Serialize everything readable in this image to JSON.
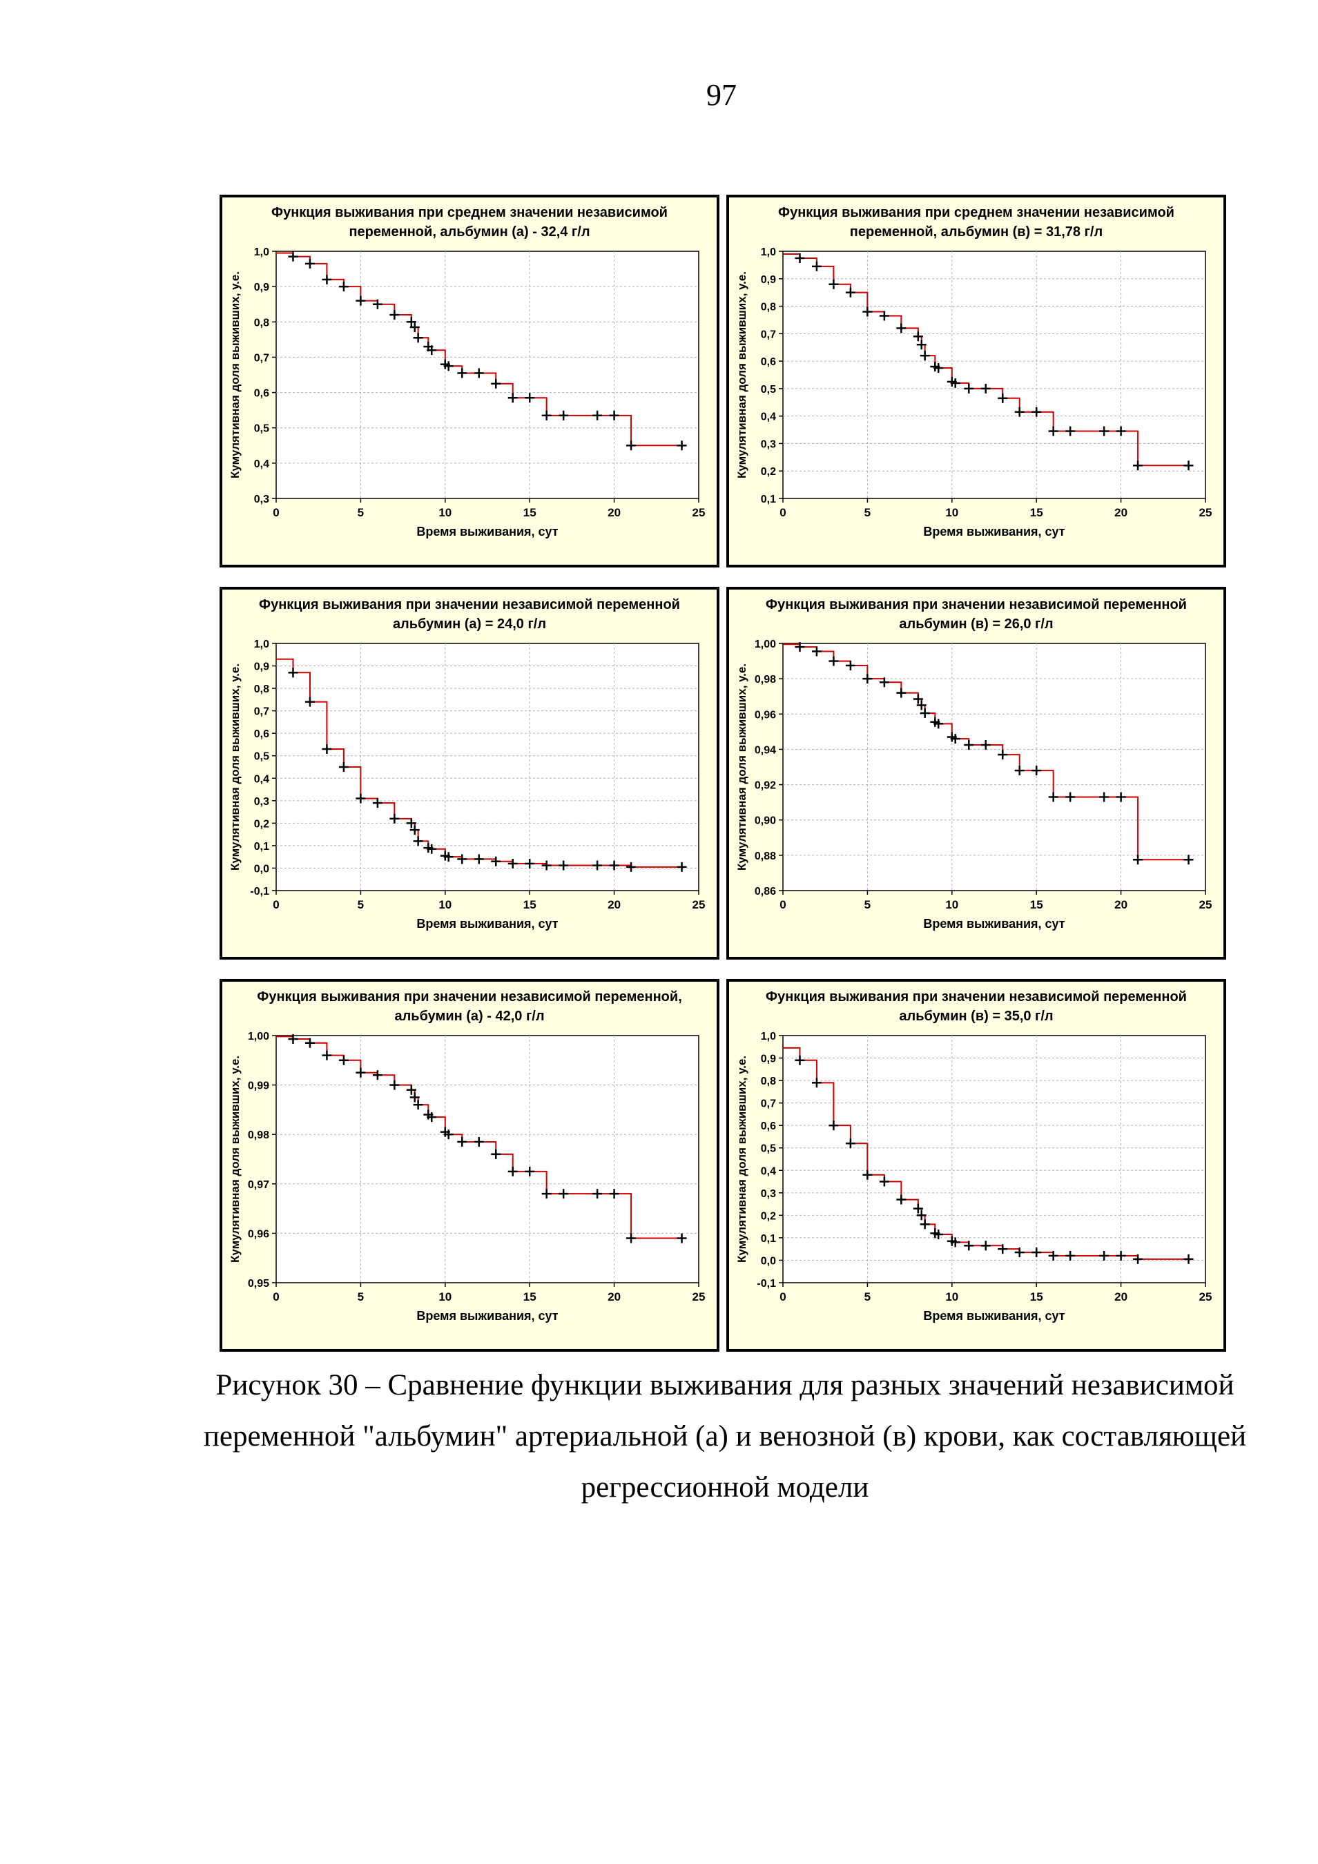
{
  "page_number": "97",
  "caption": "Рисунок 30 – Сравнение функции выживания для разных значений независимой переменной \"альбумин\" артериальной (а) и венозной (в) крови, как составляющей регрессионной модели",
  "colors": {
    "panel_bg": "#ffffe1",
    "curve": "#cc0000",
    "marker": "#000000"
  },
  "chart_data": [
    {
      "type": "line",
      "title_lines": [
        "Функция выживания при среднем значении независимой",
        "переменной, альбумин (а) - 32,4 г/л"
      ],
      "xlabel": "Время выживания, сут",
      "ylabel": "Кумулятивная доля выживших, у.е.",
      "xlim": [
        0,
        25
      ],
      "ylim": [
        0.3,
        1.0
      ],
      "xticks": [
        0,
        5,
        10,
        15,
        20,
        25
      ],
      "yticks": [
        0.3,
        0.4,
        0.5,
        0.6,
        0.7,
        0.8,
        0.9,
        1.0
      ],
      "ytick_labels": [
        "0,3",
        "0,4",
        "0,5",
        "0,6",
        "0,7",
        "0,8",
        "0,9",
        "1,0"
      ],
      "grid": true,
      "x": [
        0,
        1,
        2,
        3,
        4,
        5,
        6,
        7,
        8,
        8.2,
        8.4,
        9,
        9.2,
        10,
        10.2,
        11,
        12,
        13,
        14,
        15,
        16,
        17,
        19,
        20,
        21,
        24
      ],
      "y": [
        0.995,
        0.985,
        0.965,
        0.92,
        0.9,
        0.86,
        0.85,
        0.82,
        0.8,
        0.785,
        0.755,
        0.73,
        0.72,
        0.68,
        0.675,
        0.655,
        0.655,
        0.625,
        0.585,
        0.585,
        0.535,
        0.535,
        0.535,
        0.535,
        0.45,
        0.45
      ]
    },
    {
      "type": "line",
      "title_lines": [
        "Функция выживания при среднем значении независимой",
        "переменной, альбумин (в) = 31,78 г/л"
      ],
      "xlabel": "Время выживания, сут",
      "ylabel": "Кумулятивная доля выживших, у.е.",
      "xlim": [
        0,
        25
      ],
      "ylim": [
        0.1,
        1.0
      ],
      "xticks": [
        0,
        5,
        10,
        15,
        20,
        25
      ],
      "yticks": [
        0.1,
        0.2,
        0.3,
        0.4,
        0.5,
        0.6,
        0.7,
        0.8,
        0.9,
        1.0
      ],
      "ytick_labels": [
        "0,1",
        "0,2",
        "0,3",
        "0,4",
        "0,5",
        "0,6",
        "0,7",
        "0,8",
        "0,9",
        "1,0"
      ],
      "grid": true,
      "x": [
        0,
        1,
        2,
        3,
        4,
        5,
        6,
        7,
        8,
        8.2,
        8.4,
        9,
        9.2,
        10,
        10.2,
        11,
        12,
        13,
        14,
        15,
        16,
        17,
        19,
        20,
        21,
        24
      ],
      "y": [
        0.99,
        0.975,
        0.945,
        0.88,
        0.85,
        0.78,
        0.765,
        0.72,
        0.69,
        0.66,
        0.62,
        0.58,
        0.575,
        0.525,
        0.52,
        0.5,
        0.5,
        0.465,
        0.415,
        0.415,
        0.345,
        0.345,
        0.345,
        0.345,
        0.22,
        0.22
      ]
    },
    {
      "type": "line",
      "title_lines": [
        "Функция выживания при   значении независимой переменной",
        "альбумин (а) = 24,0 г/л"
      ],
      "xlabel": "Время выживания, сут",
      "ylabel": "Кумулятивная доля выживших, у.е.",
      "xlim": [
        0,
        25
      ],
      "ylim": [
        -0.1,
        1.0
      ],
      "xticks": [
        0,
        5,
        10,
        15,
        20,
        25
      ],
      "yticks": [
        -0.1,
        0.0,
        0.1,
        0.2,
        0.3,
        0.4,
        0.5,
        0.6,
        0.7,
        0.8,
        0.9,
        1.0
      ],
      "ytick_labels": [
        "-0,1",
        "0,0",
        "0,1",
        "0,2",
        "0,3",
        "0,4",
        "0,5",
        "0,6",
        "0,7",
        "0,8",
        "0,9",
        "1,0"
      ],
      "grid": true,
      "x": [
        0,
        1,
        2,
        3,
        4,
        5,
        6,
        7,
        8,
        8.2,
        8.4,
        9,
        9.2,
        10,
        10.2,
        11,
        12,
        13,
        14,
        15,
        16,
        17,
        19,
        20,
        21,
        24
      ],
      "y": [
        0.93,
        0.87,
        0.74,
        0.53,
        0.45,
        0.31,
        0.29,
        0.22,
        0.2,
        0.17,
        0.12,
        0.09,
        0.085,
        0.055,
        0.05,
        0.04,
        0.04,
        0.03,
        0.02,
        0.02,
        0.012,
        0.012,
        0.012,
        0.012,
        0.005,
        0.005
      ]
    },
    {
      "type": "line",
      "title_lines": [
        "Функция выживания при   значении независимой переменной",
        "альбумин (в) = 26,0 г/л"
      ],
      "xlabel": "Время выживания, сут",
      "ylabel": "Кумулятивная доля выживших, у.е.",
      "xlim": [
        0,
        25
      ],
      "ylim": [
        0.86,
        1.0
      ],
      "xticks": [
        0,
        5,
        10,
        15,
        20,
        25
      ],
      "yticks": [
        0.86,
        0.88,
        0.9,
        0.92,
        0.94,
        0.96,
        0.98,
        1.0
      ],
      "ytick_labels": [
        "0,86",
        "0,88",
        "0,90",
        "0,92",
        "0,94",
        "0,96",
        "0,98",
        "1,00"
      ],
      "grid": true,
      "x": [
        0,
        1,
        2,
        3,
        4,
        5,
        6,
        7,
        8,
        8.2,
        8.4,
        9,
        9.2,
        10,
        10.2,
        11,
        12,
        13,
        14,
        15,
        16,
        17,
        19,
        20,
        21,
        24
      ],
      "y": [
        0.9995,
        0.998,
        0.9955,
        0.99,
        0.9875,
        0.98,
        0.978,
        0.972,
        0.9685,
        0.965,
        0.9605,
        0.9555,
        0.9545,
        0.947,
        0.946,
        0.9425,
        0.9425,
        0.937,
        0.928,
        0.928,
        0.913,
        0.913,
        0.913,
        0.913,
        0.8775,
        0.8775
      ]
    },
    {
      "type": "line",
      "title_lines": [
        "Функция выживания при   значении независимой переменной,",
        "альбумин (а) - 42,0 г/л"
      ],
      "xlabel": "Время выживания, сут",
      "ylabel": "Кумулятивная доля выживших, у.е.",
      "xlim": [
        0,
        25
      ],
      "ylim": [
        0.95,
        1.0
      ],
      "xticks": [
        0,
        5,
        10,
        15,
        20,
        25
      ],
      "yticks": [
        0.95,
        0.96,
        0.97,
        0.98,
        0.99,
        1.0
      ],
      "ytick_labels": [
        "0,95",
        "0,96",
        "0,97",
        "0,98",
        "0,99",
        "1,00"
      ],
      "grid": true,
      "x": [
        0,
        1,
        2,
        3,
        4,
        5,
        6,
        7,
        8,
        8.2,
        8.4,
        9,
        9.2,
        10,
        10.2,
        11,
        12,
        13,
        14,
        15,
        16,
        17,
        19,
        20,
        21,
        24
      ],
      "y": [
        0.9998,
        0.9993,
        0.9985,
        0.996,
        0.995,
        0.9925,
        0.992,
        0.99,
        0.989,
        0.9875,
        0.986,
        0.984,
        0.9835,
        0.9805,
        0.98,
        0.9785,
        0.9785,
        0.976,
        0.9725,
        0.9725,
        0.968,
        0.968,
        0.968,
        0.968,
        0.959,
        0.959
      ]
    },
    {
      "type": "line",
      "title_lines": [
        "Функция выживания при   значении независимой переменной",
        "альбумин (в) = 35,0 г/л"
      ],
      "xlabel": "Время выживания, сут",
      "ylabel": "Кумулятивная доля выживших, у.е.",
      "xlim": [
        0,
        25
      ],
      "ylim": [
        -0.1,
        1.0
      ],
      "xticks": [
        0,
        5,
        10,
        15,
        20,
        25
      ],
      "yticks": [
        -0.1,
        0.0,
        0.1,
        0.2,
        0.3,
        0.4,
        0.5,
        0.6,
        0.7,
        0.8,
        0.9,
        1.0
      ],
      "ytick_labels": [
        "-0,1",
        "0,0",
        "0,1",
        "0,2",
        "0,3",
        "0,4",
        "0,5",
        "0,6",
        "0,7",
        "0,8",
        "0,9",
        "1,0"
      ],
      "grid": true,
      "x": [
        0,
        1,
        2,
        3,
        4,
        5,
        6,
        7,
        8,
        8.2,
        8.4,
        9,
        9.2,
        10,
        10.2,
        11,
        12,
        13,
        14,
        15,
        16,
        17,
        19,
        20,
        21,
        24
      ],
      "y": [
        0.945,
        0.89,
        0.79,
        0.6,
        0.52,
        0.38,
        0.35,
        0.27,
        0.23,
        0.2,
        0.16,
        0.12,
        0.115,
        0.085,
        0.08,
        0.065,
        0.065,
        0.05,
        0.035,
        0.035,
        0.02,
        0.02,
        0.02,
        0.02,
        0.005,
        0.005
      ]
    }
  ]
}
